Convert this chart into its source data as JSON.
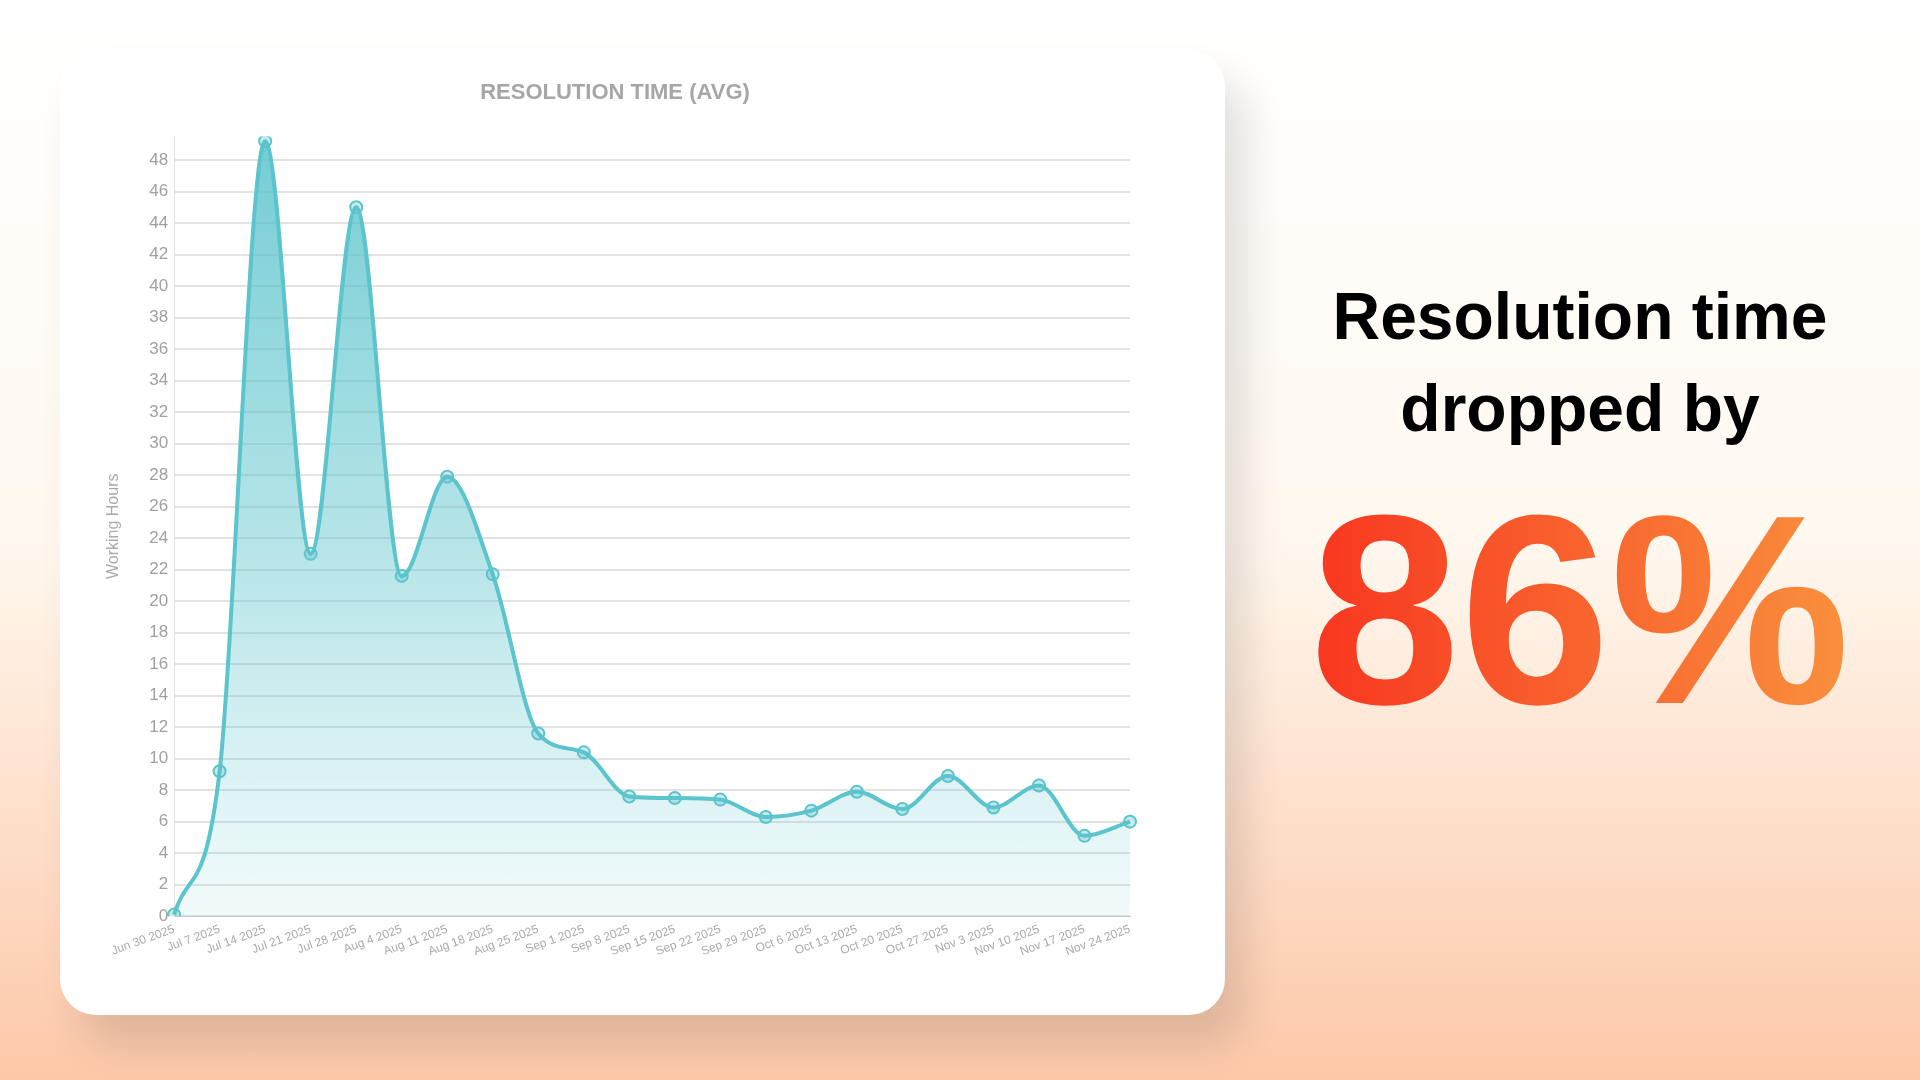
{
  "chart_data": {
    "type": "area",
    "title": "RESOLUTION TIME (AVG)",
    "ylabel": "Working Hours",
    "categories": [
      "Jun 30 2025",
      "Jul 7 2025",
      "Jul 14 2025",
      "Jul 21 2025",
      "Jul 28 2025",
      "Aug 4 2025",
      "Aug 11 2025",
      "Aug 18 2025",
      "Aug 25 2025",
      "Sep 1 2025",
      "Sep 8 2025",
      "Sep 15 2025",
      "Sep 22 2025",
      "Sep 29 2025",
      "Oct 6 2025",
      "Oct 13 2025",
      "Oct 20 2025",
      "Oct 27 2025",
      "Nov 3 2025",
      "Nov 10 2025",
      "Nov 17 2025",
      "Nov 24 2025"
    ],
    "values": [
      0.1,
      9.2,
      49.2,
      23,
      45,
      21.6,
      27.9,
      21.7,
      11.6,
      10.4,
      7.6,
      7.5,
      7.4,
      6.3,
      6.7,
      7.9,
      6.8,
      8.9,
      6.9,
      8.3,
      5.1,
      6.0
    ],
    "color": "#5bc4cc",
    "ylim": [
      0,
      49.5
    ],
    "yticks": [
      0,
      2,
      4,
      6,
      8,
      10,
      12,
      14,
      16,
      18,
      20,
      22,
      24,
      26,
      28,
      30,
      32,
      34,
      36,
      38,
      40,
      42,
      44,
      46,
      48
    ],
    "grid": "y",
    "marker": "circle",
    "line_style": "solid",
    "annotations": [
      "Resolution time dropped by",
      "86%"
    ]
  }
}
